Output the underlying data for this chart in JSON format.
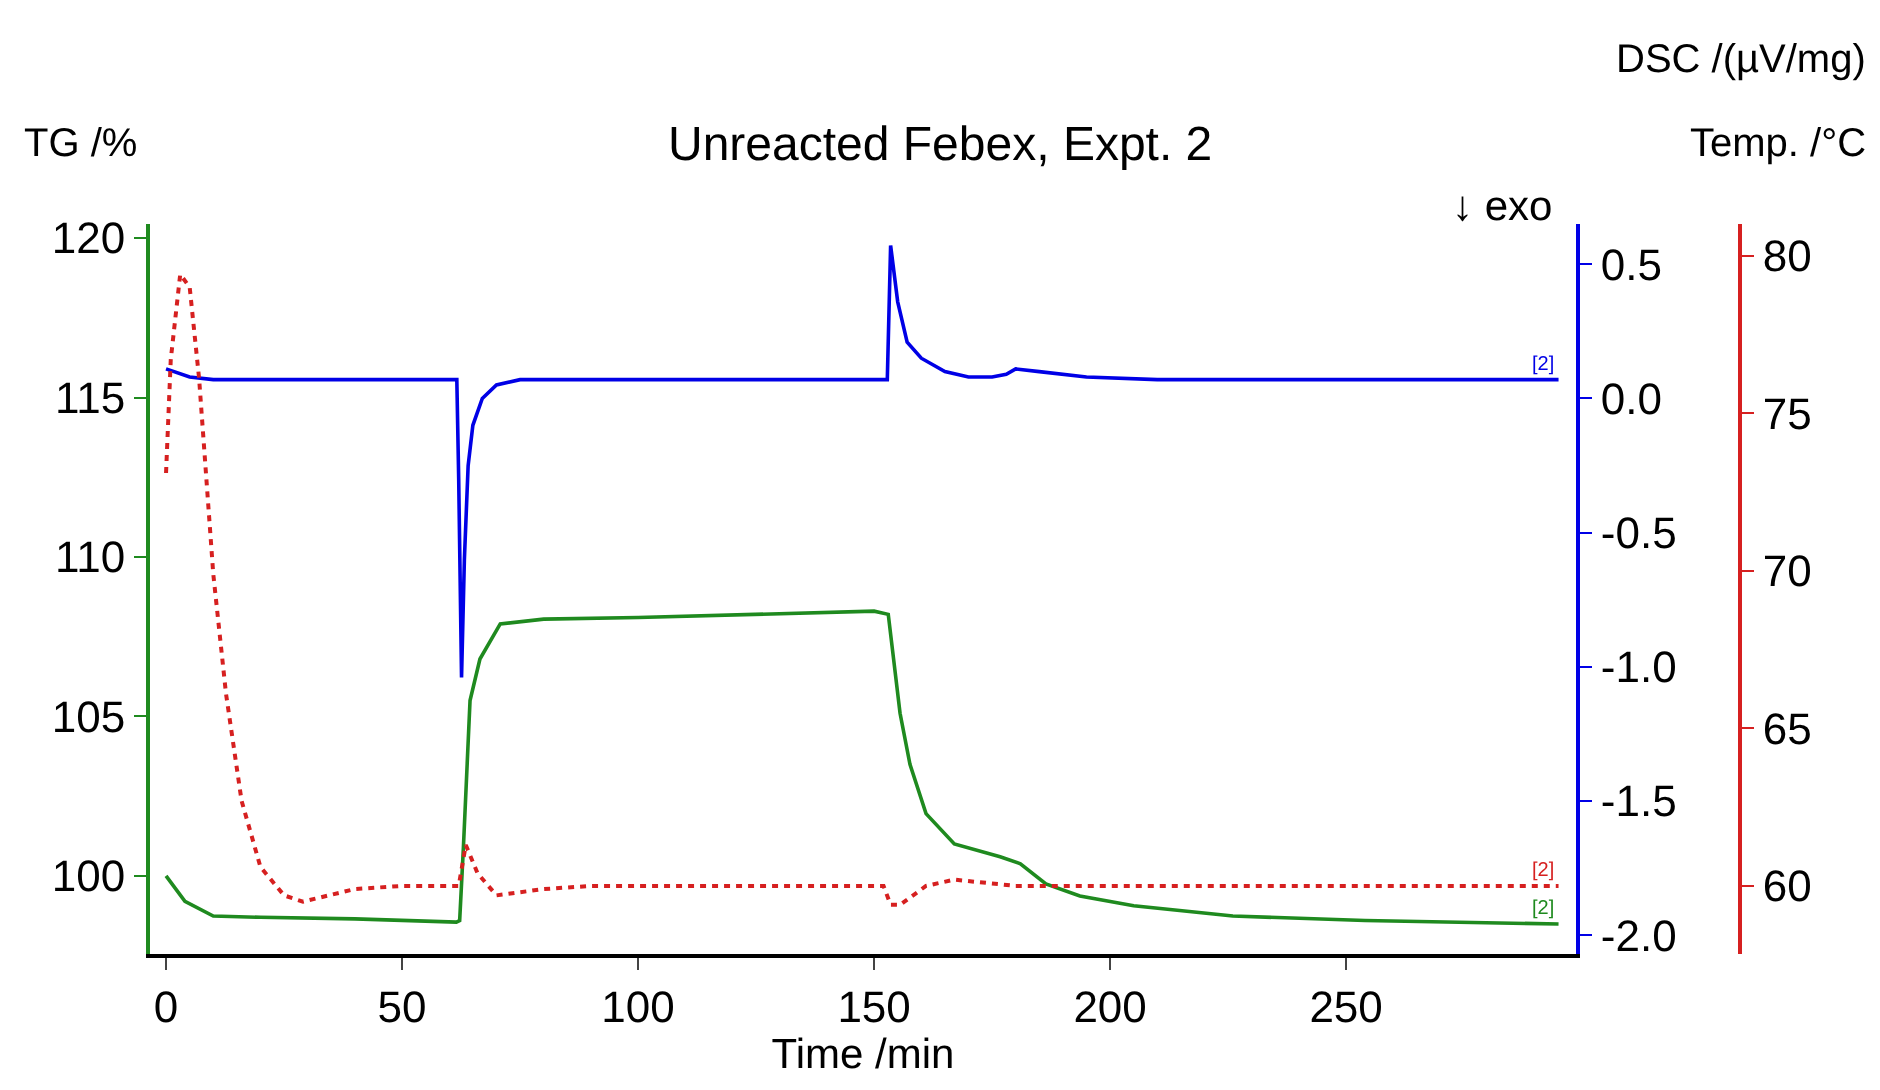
{
  "chart_data": {
    "type": "line",
    "title": "Unreacted Febex, Expt. 2",
    "xlabel": "Time /min",
    "ylabel": "TG /%",
    "y2label": "DSC /(µV/mg)",
    "y3label": "Temp. /°C",
    "xlim": [
      -3.4,
      298.7
    ],
    "xticks": [
      0,
      50,
      100,
      150,
      200,
      250
    ],
    "ylim": [
      97.55,
      120.44
    ],
    "yticks": [
      100,
      105,
      110,
      115,
      120
    ],
    "y2lim": [
      -2.07,
      0.65
    ],
    "y2ticks": [
      {
        "value": 0.5,
        "label": "0.5"
      },
      {
        "value": 0,
        "label": "0.0"
      },
      {
        "value": -0.5,
        "label": "-0.5"
      },
      {
        "value": -1,
        "label": "-1.0"
      },
      {
        "value": -1.5,
        "label": "-1.5"
      },
      {
        "value": -2,
        "label": "-2.0"
      }
    ],
    "y3lim": [
      57.84,
      81.0
    ],
    "y3ticks": [
      60,
      65,
      70,
      75,
      80
    ],
    "grid": false,
    "marker": "none",
    "series": [
      {
        "color": "#1f8a1f",
        "line_style": "solid",
        "x": [
          0,
          4,
          10,
          20,
          40,
          61.5,
          62.2,
          63,
          64.4,
          66.5,
          70.8,
          80,
          100,
          150,
          153,
          155.5,
          157.6,
          161,
          167,
          176.7,
          181,
          186.4,
          193.6,
          205,
          226,
          254,
          295
        ],
        "values": [
          100,
          99.2,
          98.74,
          98.7,
          98.65,
          98.55,
          98.6,
          100.9,
          105.5,
          106.8,
          107.9,
          108.05,
          108.1,
          108.3,
          108.2,
          105.1,
          103.5,
          101.95,
          101.0,
          100.6,
          100.38,
          99.75,
          99.37,
          99.06,
          98.74,
          98.6,
          98.49
        ]
      },
      {
        "color": "#0000e6",
        "line_style": "solid",
        "axis": "y2",
        "x": [
          0,
          5,
          10,
          60,
          61.6,
          62.0,
          62.6,
          63.2,
          64,
          65,
          67,
          70,
          75,
          150,
          152.8,
          153.5,
          155,
          157,
          160,
          165,
          170,
          175,
          178,
          180,
          185,
          195,
          210,
          295
        ],
        "values": [
          0.11,
          0.08,
          0.07,
          0.07,
          0.07,
          -0.3,
          -1.04,
          -0.6,
          -0.25,
          -0.1,
          0.0,
          0.05,
          0.07,
          0.07,
          0.07,
          0.57,
          0.36,
          0.21,
          0.15,
          0.1,
          0.08,
          0.08,
          0.09,
          0.11,
          0.1,
          0.08,
          0.07,
          0.07
        ]
      },
      {
        "color": "#d62020",
        "line_style": "dotted",
        "axis": "y3",
        "x": [
          0,
          1,
          3,
          5,
          7,
          10,
          12.7,
          16,
          20,
          25,
          29,
          40,
          50,
          62,
          63.5,
          66,
          70,
          80,
          90,
          152,
          153.5,
          155.5,
          161,
          167,
          180,
          190,
          295
        ],
        "values": [
          73.1,
          76.7,
          79.4,
          79.0,
          76.1,
          69.9,
          66.1,
          62.7,
          60.6,
          59.7,
          59.5,
          59.9,
          60,
          60,
          61.3,
          60.4,
          59.7,
          59.9,
          60,
          60,
          59.4,
          59.4,
          60,
          60.2,
          60,
          60,
          60
        ]
      }
    ],
    "annotations": [
      "↓ exo",
      "[2]",
      "[2]",
      "[2]"
    ]
  }
}
